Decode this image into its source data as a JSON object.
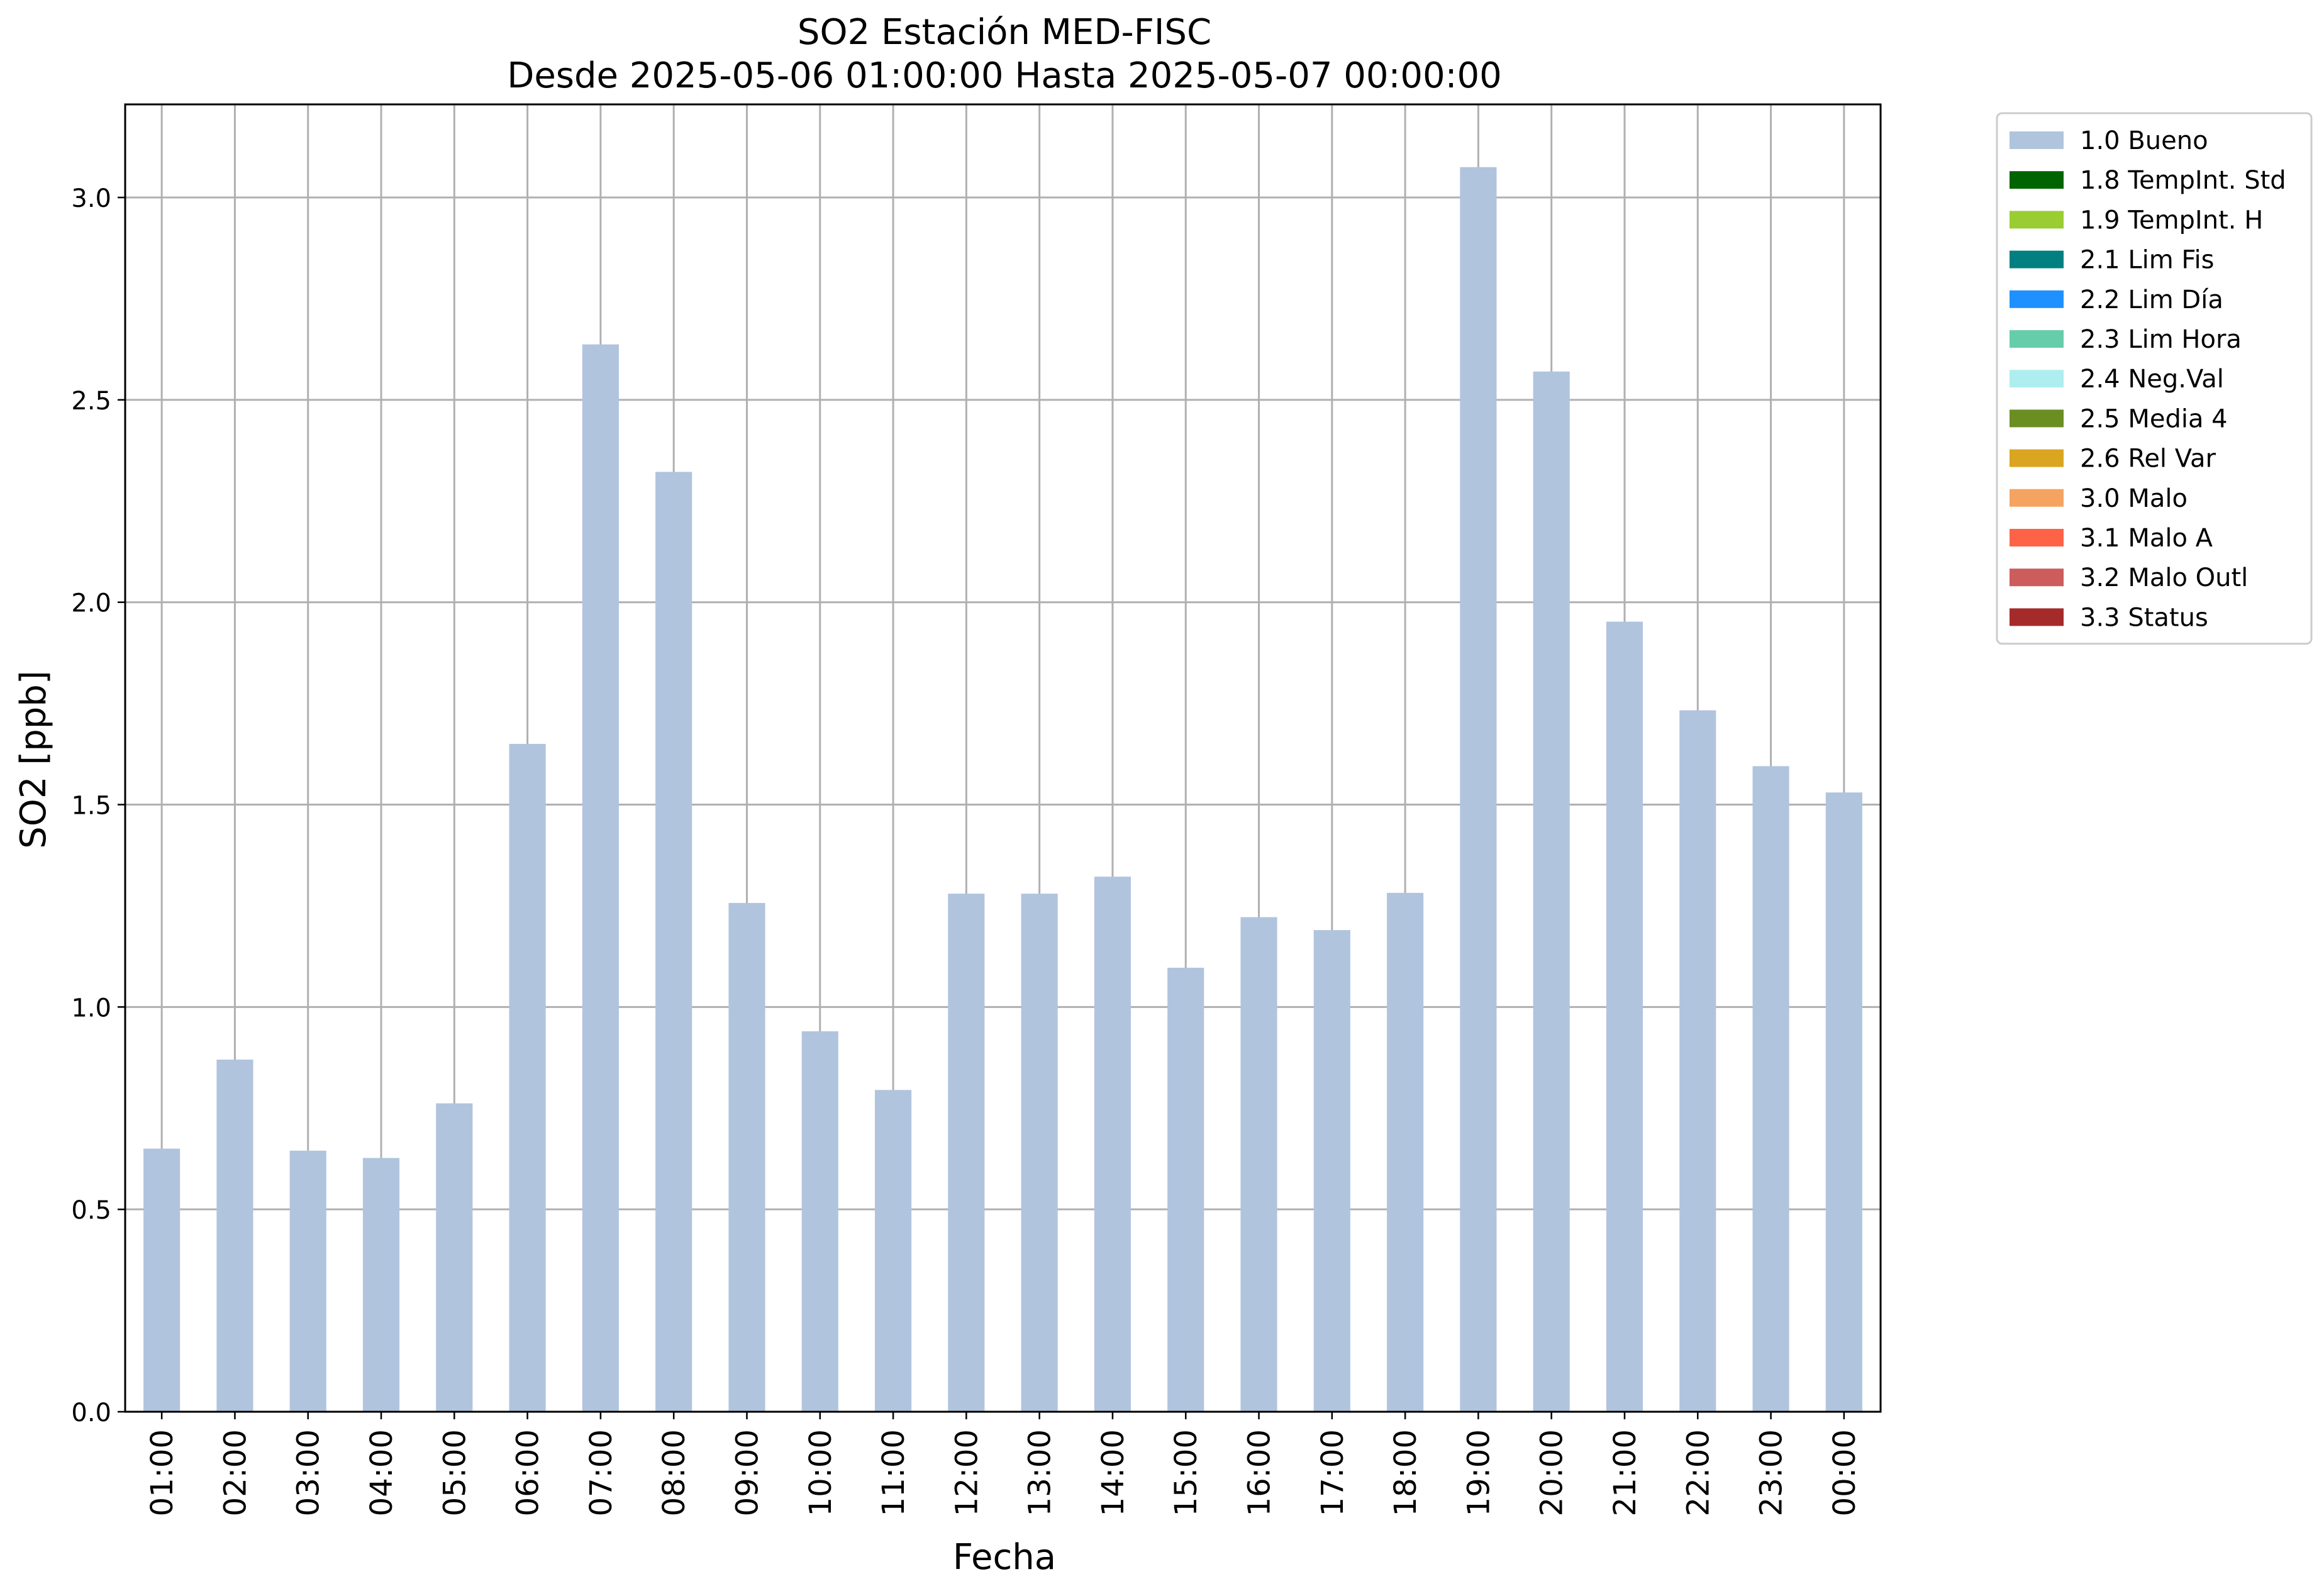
{
  "chart_data": {
    "type": "bar",
    "title": "SO2 Estación MED-FISC",
    "subtitle": "Desde 2025-05-06 01:00:00 Hasta 2025-05-07 00:00:00",
    "xlabel": "Fecha",
    "ylabel": "SO2 [ppb]",
    "ylim": [
      0,
      3.23
    ],
    "yticks": [
      "0.0",
      "0.5",
      "1.0",
      "1.5",
      "2.0",
      "2.5",
      "3.0"
    ],
    "grid": true,
    "legend_position": "outside-top-right",
    "categories": [
      "01:00",
      "02:00",
      "03:00",
      "04:00",
      "05:00",
      "06:00",
      "07:00",
      "08:00",
      "09:00",
      "10:00",
      "11:00",
      "12:00",
      "13:00",
      "14:00",
      "15:00",
      "16:00",
      "17:00",
      "18:00",
      "19:00",
      "20:00",
      "21:00",
      "22:00",
      "23:00",
      "00:00"
    ],
    "series": [
      {
        "name": "1.0 Bueno",
        "color": "#b0c4de",
        "values": [
          0.65,
          0.87,
          0.645,
          0.627,
          0.762,
          1.65,
          2.637,
          2.322,
          1.257,
          0.94,
          0.795,
          1.28,
          1.28,
          1.322,
          1.097,
          1.222,
          1.19,
          1.282,
          3.075,
          2.57,
          1.952,
          1.733,
          1.595,
          1.53
        ]
      }
    ],
    "legend": [
      {
        "label": "1.0 Bueno",
        "color": "#b0c4de"
      },
      {
        "label": "1.8 TempInt. Std",
        "color": "#006400"
      },
      {
        "label": "1.9 TempInt. H",
        "color": "#9acd32"
      },
      {
        "label": "2.1 Lim Fis",
        "color": "#008080"
      },
      {
        "label": "2.2 Lim Día",
        "color": "#1e90ff"
      },
      {
        "label": "2.3 Lim Hora",
        "color": "#66cdaa"
      },
      {
        "label": "2.4 Neg.Val",
        "color": "#afeeee"
      },
      {
        "label": "2.5 Media 4",
        "color": "#6b8e23"
      },
      {
        "label": "2.6 Rel Var",
        "color": "#daa520"
      },
      {
        "label": "3.0 Malo",
        "color": "#f4a460"
      },
      {
        "label": "3.1 Malo A",
        "color": "#ff6347"
      },
      {
        "label": "3.2 Malo Outl",
        "color": "#cd5c5c"
      },
      {
        "label": "3.3 Status",
        "color": "#a52a2a"
      }
    ]
  }
}
